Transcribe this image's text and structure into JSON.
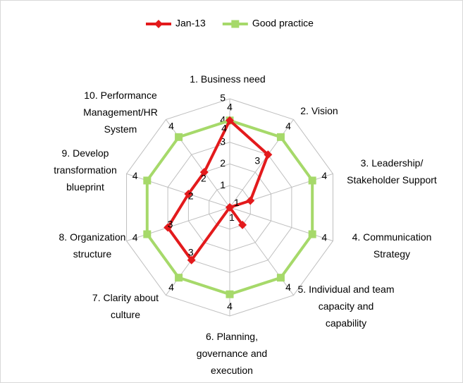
{
  "chart_data": {
    "type": "radar",
    "categories": [
      "1. Business need",
      "2. Vision",
      "3. Leadership/ Stakeholder Support",
      "4. Communication Strategy",
      "5. Individual and team capacity and capability",
      "6. Planning, governance and execution",
      "7. Clarity about culture",
      "8. Organization structure",
      "9. Develop transformation blueprint",
      "10. Performance Management/HR System"
    ],
    "series": [
      {
        "name": "Jan-13",
        "color": "#e31a1c",
        "marker": "diamond",
        "values": [
          4,
          3,
          1,
          0,
          1,
          0,
          3,
          3,
          2,
          2
        ]
      },
      {
        "name": "Good practice",
        "color": "#a6d96a",
        "marker": "square",
        "values": [
          4,
          4,
          4,
          4,
          4,
          4,
          4,
          4,
          4,
          4
        ]
      }
    ],
    "ylim": [
      0,
      5
    ],
    "yticks": [
      1,
      2,
      3,
      4,
      5
    ],
    "grid": true,
    "legend": "top"
  }
}
